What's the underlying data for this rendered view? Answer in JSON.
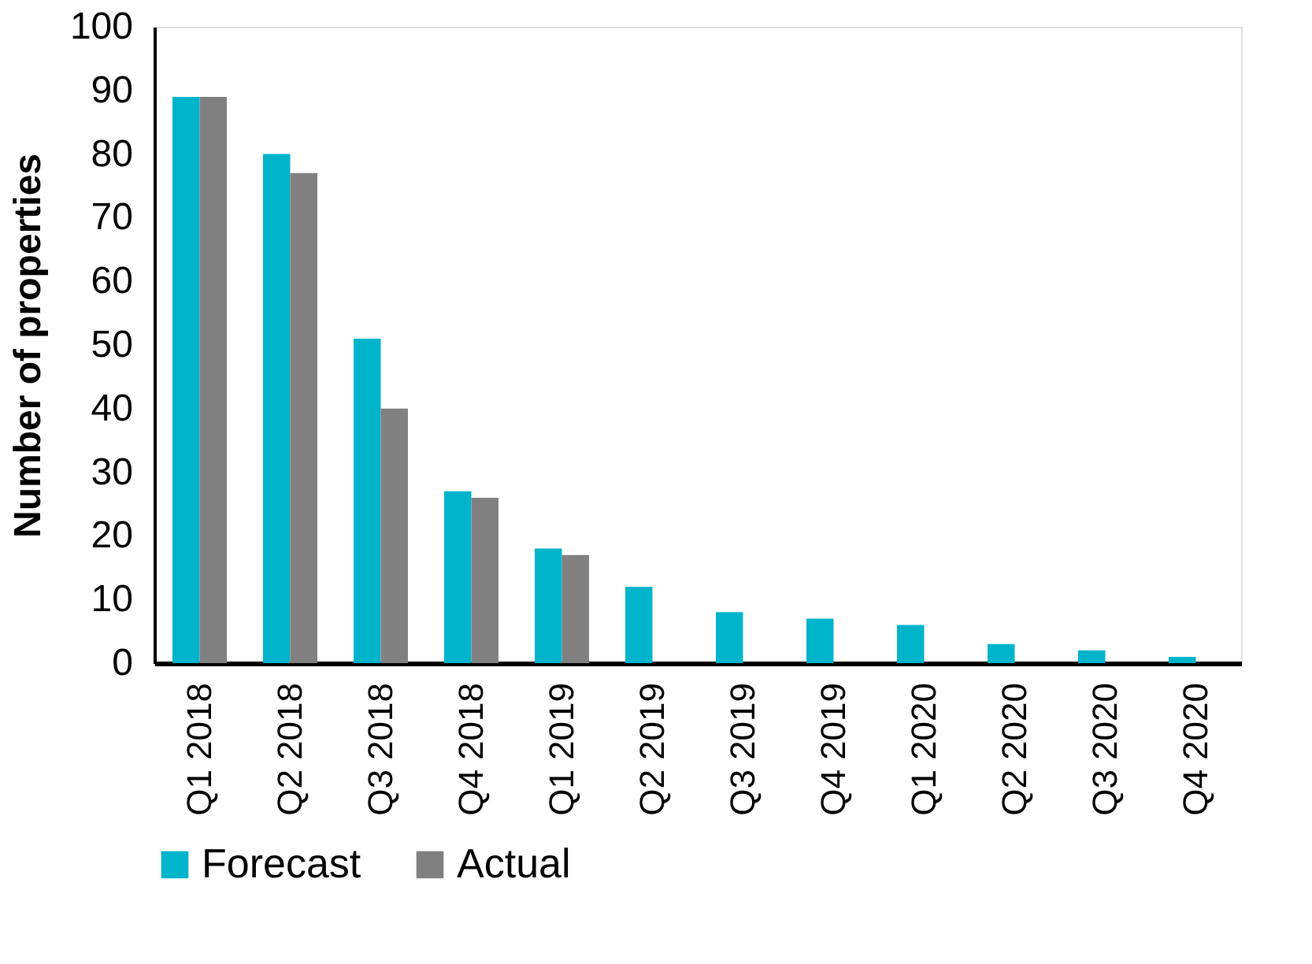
{
  "chart_data": {
    "type": "bar",
    "ylabel": "Number of properties",
    "categories": [
      "Q1 2018",
      "Q2 2018",
      "Q3 2018",
      "Q4 2018",
      "Q1 2019",
      "Q2 2019",
      "Q3 2019",
      "Q4 2019",
      "Q1 2020",
      "Q2 2020",
      "Q3 2020",
      "Q4 2020"
    ],
    "series": [
      {
        "name": "Forecast",
        "color": "#00b4cc",
        "values": [
          89,
          80,
          51,
          27,
          18,
          12,
          8,
          7,
          6,
          3,
          2,
          1
        ]
      },
      {
        "name": "Actual",
        "color": "#808080",
        "values": [
          89,
          77,
          40,
          26,
          17,
          null,
          null,
          null,
          null,
          null,
          null,
          null
        ]
      }
    ],
    "ylim": [
      0,
      100
    ],
    "yticks": [
      0,
      10,
      20,
      30,
      40,
      50,
      60,
      70,
      80,
      90,
      100
    ],
    "grid": false,
    "legend": "bottom"
  }
}
